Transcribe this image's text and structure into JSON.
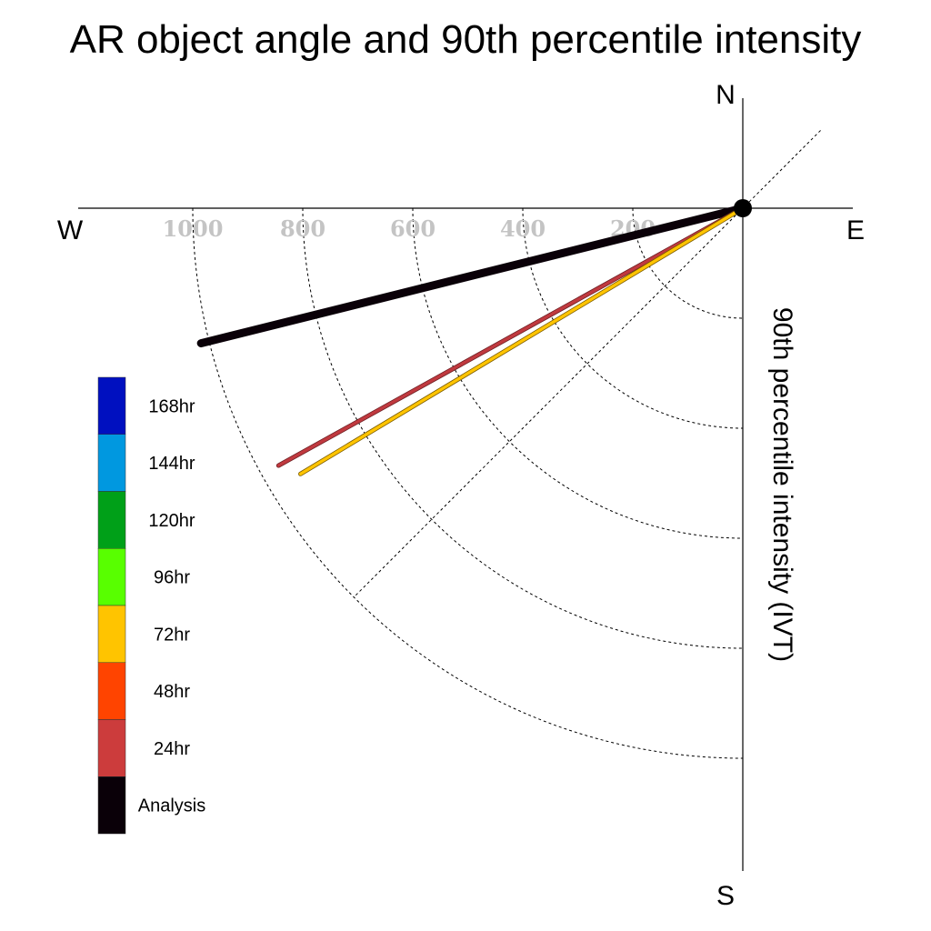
{
  "chart_data": {
    "type": "polar-vector",
    "title": "AR object angle and 90th percentile intensity",
    "radial_label": "90th percentile intensity (IVT)",
    "compass": {
      "north": "N",
      "south": "S",
      "east": "E",
      "west": "W"
    },
    "radial_ticks": [
      200,
      400,
      600,
      800,
      1000
    ],
    "radial_range": [
      0,
      1000
    ],
    "grid": true,
    "legend": {
      "placement": "left",
      "entries": [
        {
          "label": "168hr",
          "color": "#0010c0"
        },
        {
          "label": "144hr",
          "color": "#0098e0"
        },
        {
          "label": "120hr",
          "color": "#00a018"
        },
        {
          "label": "96hr",
          "color": "#58ff00"
        },
        {
          "label": "72hr",
          "color": "#ffc400"
        },
        {
          "label": "48hr",
          "color": "#ff4400"
        },
        {
          "label": "24hr",
          "color": "#cc3c3c"
        },
        {
          "label": "Analysis",
          "color": "#0a0008"
        }
      ]
    },
    "series": [
      {
        "name": "Analysis",
        "color": "#0a0008",
        "direction_deg": 256,
        "intensity": 1015
      },
      {
        "name": "24hr",
        "color": "#c0393f",
        "direction_deg": 241,
        "intensity": 965
      },
      {
        "name": "72hr",
        "color": "#ffc400",
        "direction_deg": 239,
        "intensity": 938
      }
    ]
  }
}
